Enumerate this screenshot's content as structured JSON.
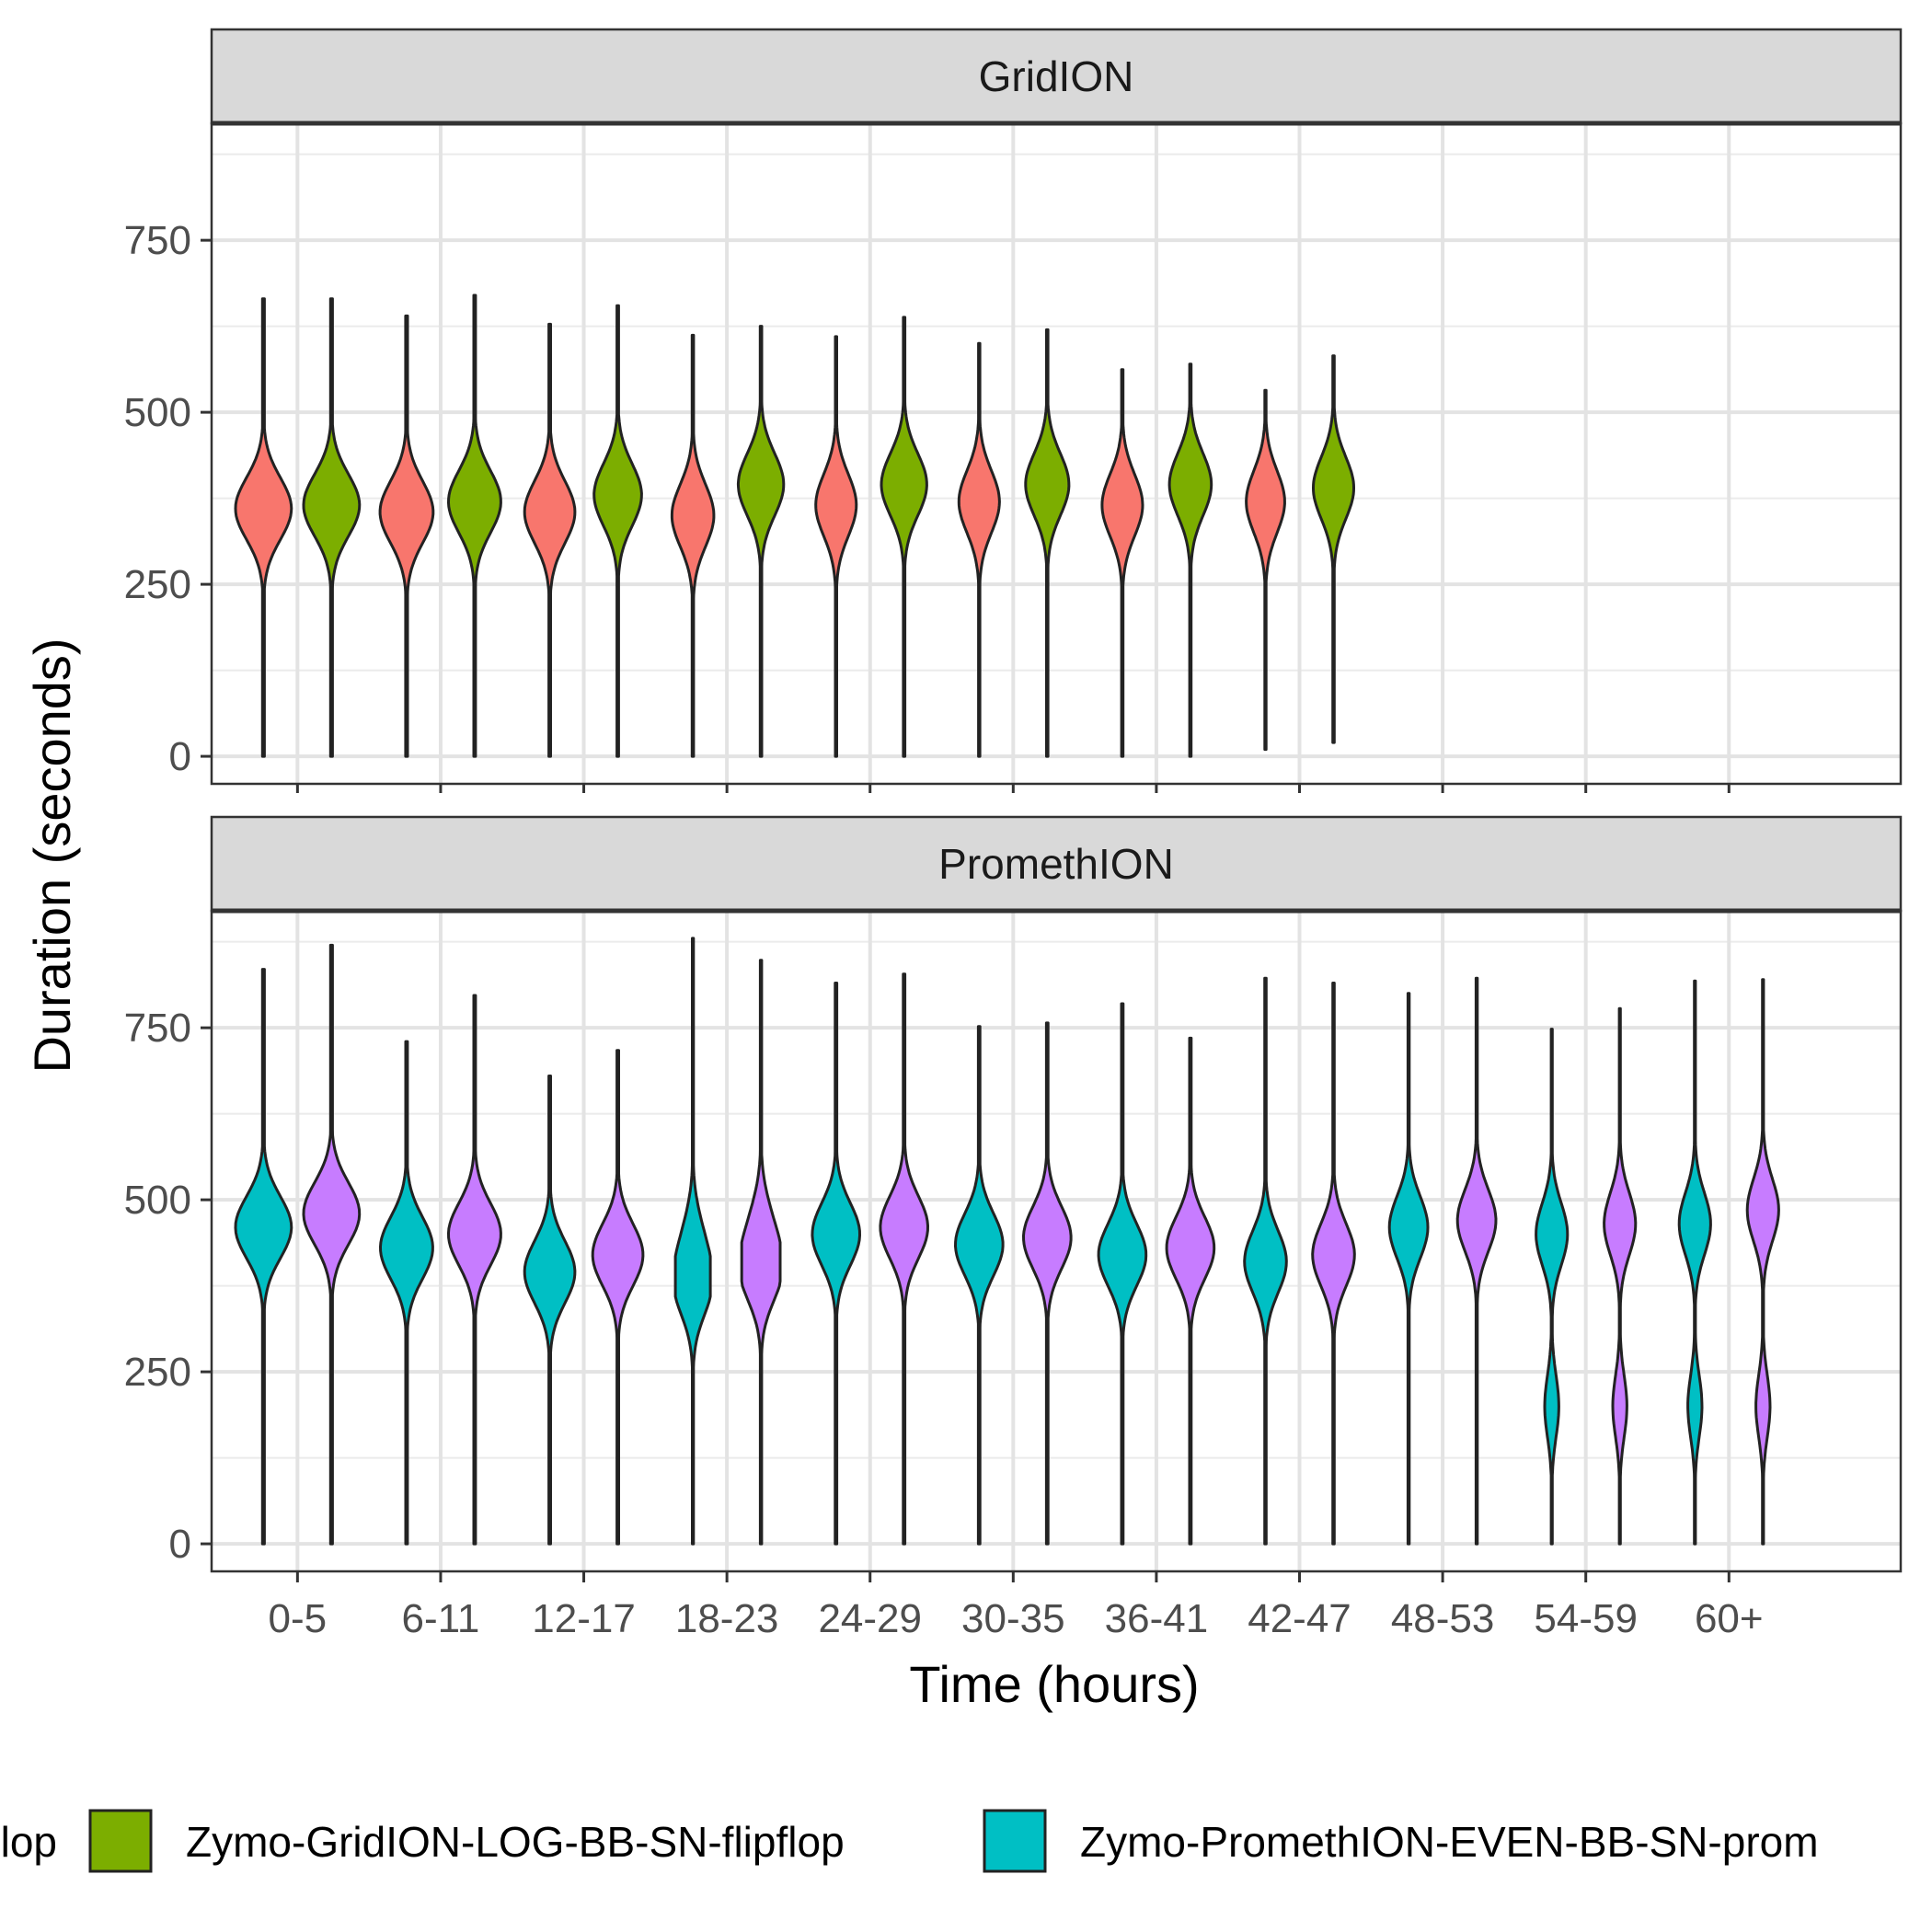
{
  "chart_data": {
    "type": "violin",
    "ylabel": "Duration (seconds)",
    "xlabel": "Time (hours)",
    "categories": [
      "0-5",
      "6-11",
      "12-17",
      "18-23",
      "24-29",
      "30-35",
      "36-41",
      "42-47",
      "48-53",
      "54-59",
      "60+"
    ],
    "y_ticks": [
      0,
      250,
      500,
      750
    ],
    "ylim": [
      -40,
      920
    ],
    "grid": true,
    "legend": {
      "position": "bottom",
      "items": [
        {
          "label": "lop",
          "color": "#F8766D",
          "swatch": false
        },
        {
          "label": "Zymo-GridION-LOG-BB-SN-flipflop",
          "color": "#7CAE00",
          "swatch": true
        },
        {
          "label": "Zymo-PromethION-EVEN-BB-SN-prom",
          "color": "#00BFC4",
          "swatch": true
        }
      ]
    },
    "panels": [
      {
        "title": "GridION",
        "series": [
          {
            "name": "",
            "color": "#F8766D",
            "categories_present": [
              0,
              1,
              2,
              3,
              4,
              5,
              6,
              7
            ],
            "min": [
              0,
              0,
              0,
              0,
              0,
              0,
              0,
              10
            ],
            "max": [
              665,
              640,
              628,
              612,
              610,
              600,
              562,
              532
            ],
            "modes": [
              [
                360
              ],
              [
                355
              ],
              [
                355
              ],
              [
                350
              ],
              [
                365
              ],
              [
                370
              ],
              [
                365
              ],
              [
                370
              ]
            ],
            "halfwidth": [
              0.8,
              0.76,
              0.72,
              0.6,
              0.58,
              0.58,
              0.58,
              0.55
            ]
          },
          {
            "name": "",
            "color": "#7CAE00",
            "categories_present": [
              0,
              1,
              2,
              3,
              4,
              5,
              6,
              7
            ],
            "min": [
              0,
              0,
              0,
              0,
              0,
              0,
              0,
              20
            ],
            "max": [
              665,
              670,
              655,
              625,
              638,
              620,
              570,
              582
            ],
            "modes": [
              [
                365
              ],
              [
                370
              ],
              [
                380
              ],
              [
                395
              ],
              [
                395
              ],
              [
                395
              ],
              [
                395
              ],
              [
                390
              ]
            ],
            "halfwidth": [
              0.8,
              0.75,
              0.68,
              0.65,
              0.65,
              0.62,
              0.6,
              0.58
            ]
          }
        ]
      },
      {
        "title": "PromethION",
        "series": [
          {
            "name": "",
            "color": "#00BFC4",
            "categories_present": [
              0,
              1,
              2,
              3,
              4,
              5,
              6,
              7,
              8,
              9,
              10
            ],
            "min": [
              0,
              0,
              0,
              0,
              0,
              0,
              0,
              0,
              0,
              0,
              0
            ],
            "max": [
              835,
              730,
              680,
              880,
              815,
              752,
              785,
              822,
              800,
              748,
              818
            ],
            "modes": [
              [
                460
              ],
              [
                430
              ],
              [
                395
              ],
              [
                375,
                445
              ],
              [
                450
              ],
              [
                435
              ],
              [
                420
              ],
              [
                410
              ],
              [
                460
              ],
              [
                450,
                200
              ],
              [
                465,
                200
              ]
            ],
            "halfwidth": [
              0.8,
              0.75,
              0.72,
              0.5,
              0.68,
              0.68,
              0.68,
              0.6,
              0.55,
              0.45,
              0.45
            ]
          },
          {
            "name": "",
            "color": "#C77CFF",
            "categories_present": [
              0,
              1,
              2,
              3,
              4,
              5,
              6,
              7,
              8,
              9,
              10
            ],
            "min": [
              0,
              0,
              0,
              0,
              0,
              0,
              0,
              0,
              0,
              0,
              0
            ],
            "max": [
              870,
              797,
              717,
              848,
              828,
              757,
              735,
              815,
              822,
              778,
              820
            ],
            "modes": [
              [
                480
              ],
              [
                450
              ],
              [
                420
              ],
              [
                395,
                465
              ],
              [
                460
              ],
              [
                445
              ],
              [
                430
              ],
              [
                420
              ],
              [
                470
              ],
              [
                465,
                200
              ],
              [
                485,
                200
              ]
            ],
            "halfwidth": [
              0.8,
              0.75,
              0.72,
              0.55,
              0.68,
              0.68,
              0.68,
              0.6,
              0.55,
              0.45,
              0.45
            ]
          }
        ]
      }
    ]
  }
}
